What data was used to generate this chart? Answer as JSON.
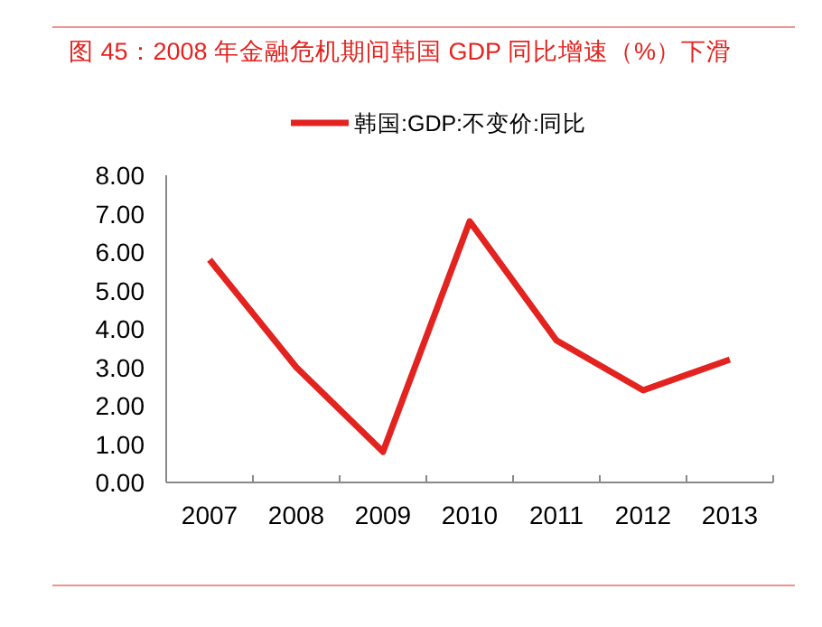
{
  "chart_data": {
    "type": "line",
    "title": "图 45：2008 年金融危机期间韩国 GDP 同比增速（%）下滑",
    "categories": [
      "2007",
      "2008",
      "2009",
      "2010",
      "2011",
      "2012",
      "2013"
    ],
    "series": [
      {
        "name": "韩国:GDP:不变价:同比",
        "color": "#e3231f",
        "values": [
          5.8,
          3.0,
          0.8,
          6.8,
          3.7,
          2.4,
          3.2
        ]
      }
    ],
    "ylim": [
      0,
      8
    ],
    "yticks": [
      {
        "value": 0,
        "label": "0.00"
      },
      {
        "value": 1,
        "label": "1.00"
      },
      {
        "value": 2,
        "label": "2.00"
      },
      {
        "value": 3,
        "label": "3.00"
      },
      {
        "value": 4,
        "label": "4.00"
      },
      {
        "value": 5,
        "label": "5.00"
      },
      {
        "value": 6,
        "label": "6.00"
      },
      {
        "value": 7,
        "label": "7.00"
      },
      {
        "value": 8,
        "label": "8.00"
      }
    ],
    "legend": "top",
    "grid": false,
    "marker": "none",
    "line_style": "solid"
  }
}
